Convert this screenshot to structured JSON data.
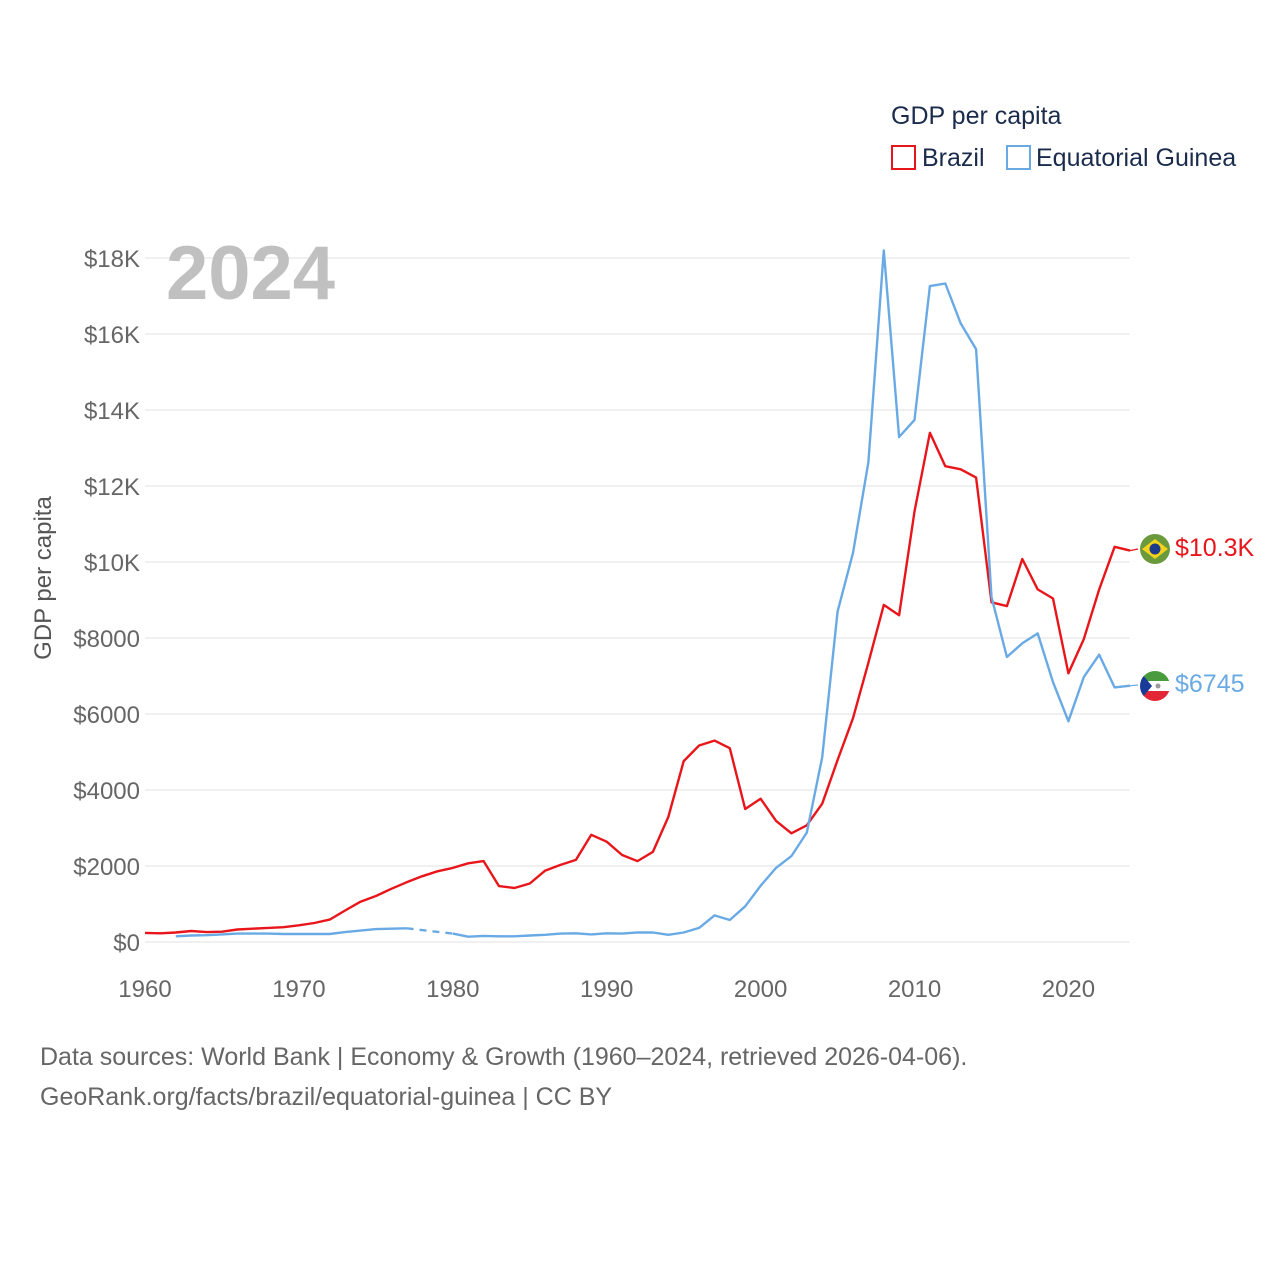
{
  "chart_data": {
    "type": "line",
    "title": "GDP per capita",
    "ylabel": "GDP per capita",
    "xlabel": "",
    "year_label": "2024",
    "xlim": [
      1960,
      2024
    ],
    "ylim": [
      0,
      18000
    ],
    "x_ticks": [
      1960,
      1970,
      1980,
      1990,
      2000,
      2010,
      2020
    ],
    "x_tick_labels": [
      "1960",
      "1970",
      "1980",
      "1990",
      "2000",
      "2010",
      "2020"
    ],
    "y_ticks": [
      0,
      2000,
      4000,
      6000,
      8000,
      10000,
      12000,
      14000,
      16000,
      18000
    ],
    "y_tick_labels": [
      "$0",
      "$2000",
      "$4000",
      "$6000",
      "$8000",
      "$10K",
      "$12K",
      "$14K",
      "$16K",
      "$18K"
    ],
    "grid": true,
    "legend_position": "top-right",
    "series": [
      {
        "name": "Brazil",
        "color": "#e8161b",
        "end_label": "$10.3K",
        "flag": "brazil-flag",
        "x": [
          1960,
          1961,
          1962,
          1963,
          1964,
          1965,
          1966,
          1967,
          1968,
          1969,
          1970,
          1971,
          1972,
          1973,
          1974,
          1975,
          1976,
          1977,
          1978,
          1979,
          1980,
          1981,
          1982,
          1983,
          1984,
          1985,
          1986,
          1987,
          1988,
          1989,
          1990,
          1991,
          1992,
          1993,
          1994,
          1995,
          1996,
          1997,
          1998,
          1999,
          2000,
          2001,
          2002,
          2003,
          2004,
          2005,
          2006,
          2007,
          2008,
          2009,
          2010,
          2011,
          2012,
          2013,
          2014,
          2015,
          2016,
          2017,
          2018,
          2019,
          2020,
          2021,
          2022,
          2023,
          2024
        ],
        "values": [
          240,
          230,
          250,
          290,
          260,
          270,
          330,
          350,
          370,
          390,
          440,
          500,
          590,
          830,
          1060,
          1210,
          1400,
          1570,
          1730,
          1860,
          1950,
          2070,
          2130,
          1470,
          1420,
          1540,
          1880,
          2030,
          2160,
          2820,
          2640,
          2290,
          2130,
          2370,
          3290,
          4760,
          5170,
          5300,
          5100,
          3500,
          3770,
          3190,
          2860,
          3070,
          3640,
          4790,
          5890,
          7350,
          8870,
          8600,
          11330,
          13400,
          12520,
          12440,
          12220,
          8940,
          8840,
          10080,
          9280,
          9040,
          7070,
          7970,
          9280,
          10400,
          10300
        ]
      },
      {
        "name": "Equatorial Guinea",
        "color": "#6aaae4",
        "end_label": "$6745",
        "flag": "equatorial-guinea-flag",
        "x": [
          1962,
          1963,
          1964,
          1965,
          1966,
          1967,
          1968,
          1969,
          1970,
          1971,
          1972,
          1973,
          1974,
          1975,
          1976,
          1977,
          1980,
          1981,
          1982,
          1983,
          1984,
          1985,
          1986,
          1987,
          1988,
          1989,
          1990,
          1991,
          1992,
          1993,
          1994,
          1995,
          1996,
          1997,
          1998,
          1999,
          2000,
          2001,
          2002,
          2003,
          2004,
          2005,
          2006,
          2007,
          2008,
          2009,
          2010,
          2011,
          2012,
          2013,
          2014,
          2015,
          2016,
          2017,
          2018,
          2019,
          2020,
          2021,
          2022,
          2023,
          2024
        ],
        "gap": {
          "from": 1977,
          "to": 1980,
          "style": "dashed"
        },
        "values": [
          150,
          170,
          180,
          200,
          220,
          220,
          220,
          210,
          210,
          210,
          210,
          260,
          300,
          340,
          350,
          360,
          220,
          140,
          160,
          150,
          150,
          170,
          190,
          220,
          230,
          200,
          230,
          220,
          250,
          250,
          190,
          250,
          370,
          700,
          580,
          940,
          1480,
          1950,
          2260,
          2880,
          4860,
          8700,
          10240,
          12630,
          18200,
          13290,
          13740,
          17260,
          17330,
          16280,
          15600,
          9080,
          7500,
          7860,
          8120,
          6840,
          5810,
          6970,
          7560,
          6700,
          6745
        ]
      }
    ]
  },
  "footer": {
    "line1": "Data sources: World Bank | Economy & Growth (1960–2024, retrieved 2026-04-06).",
    "line2": "GeoRank.org/facts/brazil/equatorial-guinea | CC BY"
  }
}
